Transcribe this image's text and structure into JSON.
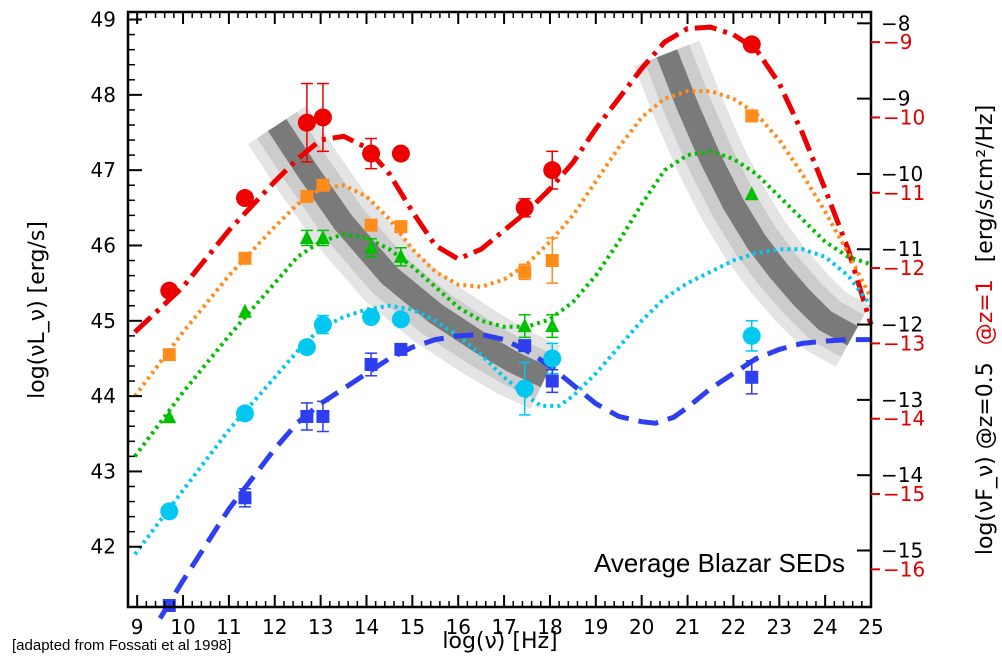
{
  "chart_data": {
    "type": "scatter",
    "title": "Average Blazar SEDs",
    "xlabel": "log(ν)  [Hz]",
    "ylabel": "log(νL_ν)  [erg/s]",
    "right_axis_label_black": "log(νF_ν) @z=0.5",
    "right_axis_label_red": "@z=1",
    "right_axis_units": "[erg/s/cm²/Hz]",
    "source_note": "[adapted from Fossati et al 1998]",
    "xlim": [
      8.8,
      25
    ],
    "ylim": [
      41.2,
      49.1
    ],
    "xticks": [
      "9",
      "10",
      "11",
      "12",
      "13",
      "14",
      "15",
      "16",
      "17",
      "18",
      "19",
      "20",
      "21",
      "22",
      "23",
      "24",
      "25"
    ],
    "yticks": [
      "42",
      "43",
      "44",
      "45",
      "46",
      "47",
      "48",
      "49"
    ],
    "right_ticks_black": [
      {
        "label": "−8",
        "y": 48.95
      },
      {
        "label": "−9",
        "y": 47.95
      },
      {
        "label": "−10",
        "y": 46.95
      },
      {
        "label": "−11",
        "y": 45.95
      },
      {
        "label": "−12",
        "y": 44.95
      },
      {
        "label": "−13",
        "y": 43.95
      },
      {
        "label": "−14",
        "y": 42.95
      },
      {
        "label": "−15",
        "y": 41.95
      }
    ],
    "right_ticks_red": [
      {
        "label": "−9",
        "y": 48.7
      },
      {
        "label": "−10",
        "y": 47.7
      },
      {
        "label": "−11",
        "y": 46.7
      },
      {
        "label": "−12",
        "y": 45.7
      },
      {
        "label": "−13",
        "y": 44.7
      },
      {
        "label": "−14",
        "y": 43.7
      },
      {
        "label": "−15",
        "y": 42.7
      },
      {
        "label": "−16",
        "y": 41.7
      }
    ],
    "series": [
      {
        "color": "#ee0000",
        "marker": "circle",
        "points": [
          [
            9.7,
            45.4
          ],
          [
            11.35,
            46.63
          ],
          [
            12.7,
            47.63
          ],
          [
            13.05,
            47.7
          ],
          [
            14.1,
            47.22
          ],
          [
            14.75,
            47.22
          ],
          [
            17.45,
            46.5
          ],
          [
            18.05,
            47.0
          ],
          [
            22.4,
            48.67
          ]
        ],
        "errors": [
          0,
          0,
          0.52,
          0.45,
          0.2,
          0,
          0.12,
          0.25,
          0
        ],
        "curve": [
          [
            8.95,
            44.85
          ],
          [
            10,
            45.45
          ],
          [
            11,
            46.2
          ],
          [
            12,
            46.85
          ],
          [
            12.5,
            47.15
          ],
          [
            13,
            47.4
          ],
          [
            13.5,
            47.45
          ],
          [
            14,
            47.3
          ],
          [
            14.5,
            46.95
          ],
          [
            15,
            46.45
          ],
          [
            15.5,
            46.0
          ],
          [
            16,
            45.82
          ],
          [
            16.5,
            45.95
          ],
          [
            17,
            46.2
          ],
          [
            17.5,
            46.45
          ],
          [
            18,
            46.75
          ],
          [
            18.5,
            47.1
          ],
          [
            19,
            47.55
          ],
          [
            19.5,
            47.95
          ],
          [
            20,
            48.35
          ],
          [
            20.5,
            48.7
          ],
          [
            21,
            48.88
          ],
          [
            21.5,
            48.9
          ],
          [
            22,
            48.8
          ],
          [
            22.5,
            48.6
          ],
          [
            23,
            48.15
          ],
          [
            23.5,
            47.5
          ],
          [
            24,
            46.75
          ],
          [
            24.5,
            45.95
          ],
          [
            25,
            44.95
          ]
        ],
        "curve_style": "dashdot"
      },
      {
        "color": "#ff8c1a",
        "marker": "square",
        "points": [
          [
            9.7,
            44.55
          ],
          [
            11.35,
            45.83
          ],
          [
            12.7,
            46.65
          ],
          [
            13.05,
            46.8
          ],
          [
            14.1,
            46.27
          ],
          [
            14.75,
            46.25
          ],
          [
            17.45,
            45.65
          ],
          [
            18.05,
            45.8
          ],
          [
            22.4,
            47.72
          ]
        ],
        "errors": [
          0,
          0,
          0,
          0,
          0,
          0,
          0.1,
          0.3,
          0
        ],
        "curve": [
          [
            8.95,
            44.0
          ],
          [
            10,
            44.85
          ],
          [
            11,
            45.6
          ],
          [
            12,
            46.25
          ],
          [
            12.5,
            46.55
          ],
          [
            13,
            46.75
          ],
          [
            13.5,
            46.8
          ],
          [
            14,
            46.65
          ],
          [
            14.5,
            46.35
          ],
          [
            15,
            45.95
          ],
          [
            15.5,
            45.65
          ],
          [
            16,
            45.48
          ],
          [
            16.5,
            45.45
          ],
          [
            17,
            45.55
          ],
          [
            17.5,
            45.75
          ],
          [
            18,
            46.05
          ],
          [
            18.5,
            46.4
          ],
          [
            19,
            46.85
          ],
          [
            19.5,
            47.3
          ],
          [
            20,
            47.7
          ],
          [
            20.5,
            47.95
          ],
          [
            21,
            48.05
          ],
          [
            21.5,
            48.05
          ],
          [
            22,
            47.95
          ],
          [
            22.5,
            47.75
          ],
          [
            23,
            47.4
          ],
          [
            23.5,
            46.95
          ],
          [
            24,
            46.45
          ],
          [
            24.5,
            45.9
          ],
          [
            25,
            45.3
          ]
        ],
        "curve_style": "dotted"
      },
      {
        "color": "#00c000",
        "marker": "triangle",
        "points": [
          [
            9.7,
            43.72
          ],
          [
            11.35,
            45.12
          ],
          [
            12.7,
            46.1
          ],
          [
            13.05,
            46.1
          ],
          [
            14.1,
            45.97
          ],
          [
            14.75,
            45.85
          ],
          [
            17.45,
            44.93
          ],
          [
            18.05,
            44.93
          ],
          [
            22.4,
            46.68
          ]
        ],
        "errors": [
          0,
          0,
          0.1,
          0.1,
          0.12,
          0.12,
          0.15,
          0.15,
          0
        ],
        "curve": [
          [
            8.95,
            43.2
          ],
          [
            10,
            44.05
          ],
          [
            11,
            44.8
          ],
          [
            12,
            45.5
          ],
          [
            12.5,
            45.85
          ],
          [
            13,
            46.05
          ],
          [
            13.5,
            46.15
          ],
          [
            14,
            46.1
          ],
          [
            14.5,
            45.95
          ],
          [
            15,
            45.72
          ],
          [
            15.5,
            45.45
          ],
          [
            16,
            45.18
          ],
          [
            16.5,
            45.0
          ],
          [
            17,
            44.92
          ],
          [
            17.5,
            44.92
          ],
          [
            18,
            45.02
          ],
          [
            18.5,
            45.25
          ],
          [
            19,
            45.6
          ],
          [
            19.5,
            46.05
          ],
          [
            20,
            46.55
          ],
          [
            20.5,
            47.0
          ],
          [
            21,
            47.2
          ],
          [
            21.5,
            47.25
          ],
          [
            22,
            47.15
          ],
          [
            22.5,
            46.95
          ],
          [
            23,
            46.65
          ],
          [
            23.5,
            46.35
          ],
          [
            24,
            46.05
          ],
          [
            24.5,
            45.85
          ],
          [
            25,
            45.75
          ]
        ],
        "curve_style": "dotted"
      },
      {
        "color": "#00c8f0",
        "marker": "circle",
        "points": [
          [
            9.7,
            42.47
          ],
          [
            11.35,
            43.77
          ],
          [
            12.7,
            44.65
          ],
          [
            13.05,
            44.95
          ],
          [
            14.1,
            45.05
          ],
          [
            14.75,
            45.02
          ],
          [
            17.45,
            44.1
          ],
          [
            18.05,
            44.5
          ],
          [
            22.4,
            44.8
          ]
        ],
        "errors": [
          0,
          0,
          0,
          0.12,
          0,
          0,
          0.35,
          0.2,
          0.2
        ],
        "curve": [
          [
            8.95,
            41.9
          ],
          [
            10,
            42.75
          ],
          [
            11,
            43.55
          ],
          [
            12,
            44.25
          ],
          [
            12.5,
            44.6
          ],
          [
            13,
            44.9
          ],
          [
            13.5,
            45.05
          ],
          [
            14,
            45.15
          ],
          [
            14.5,
            45.2
          ],
          [
            15,
            45.15
          ],
          [
            15.5,
            45.0
          ],
          [
            16,
            44.8
          ],
          [
            16.5,
            44.55
          ],
          [
            17,
            44.25
          ],
          [
            17.5,
            44.0
          ],
          [
            17.8,
            43.87
          ],
          [
            18.2,
            43.87
          ],
          [
            18.5,
            44.0
          ],
          [
            19,
            44.3
          ],
          [
            19.5,
            44.65
          ],
          [
            20,
            45.0
          ],
          [
            20.5,
            45.3
          ],
          [
            21,
            45.5
          ],
          [
            21.5,
            45.65
          ],
          [
            22,
            45.8
          ],
          [
            22.5,
            45.9
          ],
          [
            23,
            45.95
          ],
          [
            23.5,
            45.95
          ],
          [
            24,
            45.85
          ],
          [
            24.5,
            45.6
          ],
          [
            25,
            45.2
          ]
        ],
        "curve_style": "dotted"
      },
      {
        "color": "#2e3ff0",
        "marker": "square",
        "points": [
          [
            9.7,
            41.22
          ],
          [
            11.35,
            42.65
          ],
          [
            12.7,
            43.73
          ],
          [
            13.05,
            43.73
          ],
          [
            14.1,
            44.42
          ],
          [
            14.75,
            44.62
          ],
          [
            17.45,
            44.67
          ],
          [
            18.05,
            44.2
          ],
          [
            22.4,
            44.25
          ]
        ],
        "errors": [
          0,
          0.12,
          0.18,
          0.2,
          0.15,
          0,
          0,
          0.15,
          0.22
        ],
        "curve": [
          [
            9.5,
            41.05
          ],
          [
            10,
            41.55
          ],
          [
            11,
            42.5
          ],
          [
            12,
            43.3
          ],
          [
            12.5,
            43.65
          ],
          [
            13,
            43.9
          ],
          [
            13.5,
            44.1
          ],
          [
            14,
            44.3
          ],
          [
            14.5,
            44.5
          ],
          [
            15,
            44.65
          ],
          [
            15.5,
            44.75
          ],
          [
            16,
            44.8
          ],
          [
            16.5,
            44.82
          ],
          [
            17,
            44.75
          ],
          [
            17.5,
            44.6
          ],
          [
            18,
            44.4
          ],
          [
            18.5,
            44.15
          ],
          [
            19,
            43.9
          ],
          [
            19.5,
            43.73
          ],
          [
            20,
            43.66
          ],
          [
            20.3,
            43.64
          ],
          [
            20.7,
            43.72
          ],
          [
            21,
            43.85
          ],
          [
            21.5,
            44.1
          ],
          [
            22,
            44.3
          ],
          [
            22.5,
            44.5
          ],
          [
            23,
            44.62
          ],
          [
            23.5,
            44.7
          ],
          [
            24,
            44.73
          ],
          [
            24.5,
            44.75
          ],
          [
            25,
            44.75
          ]
        ],
        "curve_style": "dashed"
      }
    ],
    "peak_bands": [
      {
        "name": "synchrotron-peak",
        "path": [
          [
            12.05,
            47.6
          ],
          [
            12.7,
            47.0
          ],
          [
            13.5,
            46.3
          ],
          [
            14.5,
            45.6
          ],
          [
            15.5,
            45.1
          ],
          [
            16.5,
            44.7
          ],
          [
            17.2,
            44.45
          ],
          [
            17.9,
            44.25
          ]
        ]
      },
      {
        "name": "compton-peak",
        "path": [
          [
            20.55,
            48.55
          ],
          [
            21.0,
            47.85
          ],
          [
            21.5,
            47.15
          ],
          [
            22.0,
            46.55
          ],
          [
            22.5,
            46.05
          ],
          [
            23.0,
            45.65
          ],
          [
            23.5,
            45.3
          ],
          [
            24.0,
            45.0
          ],
          [
            24.6,
            44.8
          ]
        ]
      }
    ],
    "grid": false,
    "legend": "none"
  }
}
